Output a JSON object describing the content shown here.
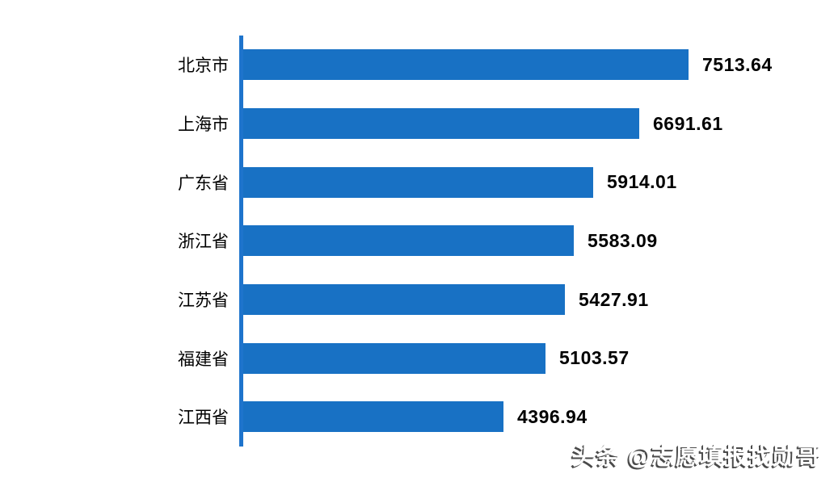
{
  "chart_data": {
    "type": "bar",
    "orientation": "horizontal",
    "title": "",
    "xlabel": "",
    "ylabel": "",
    "categories": [
      "北京市",
      "上海市",
      "广东省",
      "浙江省",
      "江苏省",
      "福建省",
      "江西省"
    ],
    "values": [
      7513.64,
      6691.61,
      5914.01,
      5583.09,
      5427.91,
      5103.57,
      4396.94
    ],
    "value_labels": [
      "7513.64",
      "6691.61",
      "5914.01",
      "5583.09",
      "5427.91",
      "5103.57",
      "4396.94"
    ],
    "xlim": [
      0,
      8000
    ],
    "grid": false,
    "legend_position": "none",
    "bar_color": "#1871C4",
    "axis_line_color": "#1E74CC",
    "category_label_color": "#000000",
    "value_label_color": "#000000"
  },
  "watermark": {
    "text": "头条 @志愿填报找勋哥"
  }
}
